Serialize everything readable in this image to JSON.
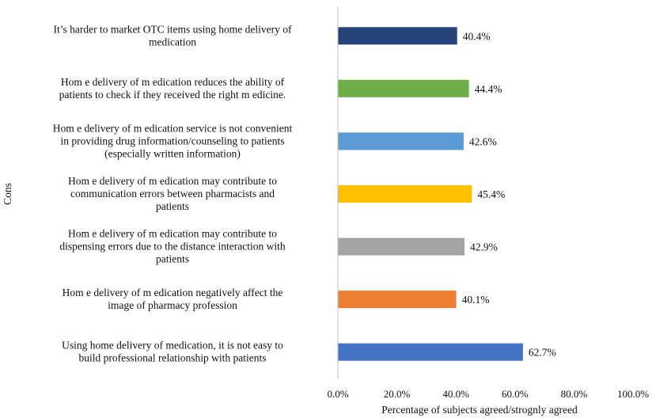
{
  "chart_data": {
    "type": "bar",
    "orientation": "horizontal",
    "title": "",
    "xlabel": "Percentage of subjects agreed/strognly agreed",
    "ylabel": "Cons",
    "xlim": [
      0,
      100
    ],
    "x_ticks": [
      "0.0%",
      "20.0%",
      "40.0%",
      "60.0%",
      "80.0%",
      "100.0%"
    ],
    "grid": false,
    "legend": "none",
    "categories": [
      [
        "It’s harder to market  OTC items using home delivery of",
        "medication"
      ],
      [
        "Hom e delivery of m edication reduces the ability of",
        "patients to check if they received the right m edicine."
      ],
      [
        "Hom e delivery of m edication service is not convenient",
        "in providing drug information/counseling to patients",
        "(especially written information)"
      ],
      [
        "Hom e delivery of m edication may contribute to",
        "communication errors between pharmacists and",
        "patients"
      ],
      [
        "Hom e delivery of m edication may contribute to",
        "dispensing errors due to the distance interaction with",
        "patients"
      ],
      [
        "Hom e delivery of m edication negatively affect the",
        "image of pharmacy profession"
      ],
      [
        "Using home delivery of medication, it is not easy to",
        "build professional relationship with patients"
      ]
    ],
    "values": [
      40.4,
      44.4,
      42.6,
      45.4,
      42.9,
      40.1,
      62.7
    ],
    "value_labels": [
      "40.4%",
      "44.4%",
      "42.6%",
      "45.4%",
      "42.9%",
      "40.1%",
      "62.7%"
    ],
    "colors": [
      "#264478",
      "#70AD47",
      "#5B9BD5",
      "#FFC000",
      "#A5A5A5",
      "#ED7D31",
      "#4472C4"
    ]
  }
}
